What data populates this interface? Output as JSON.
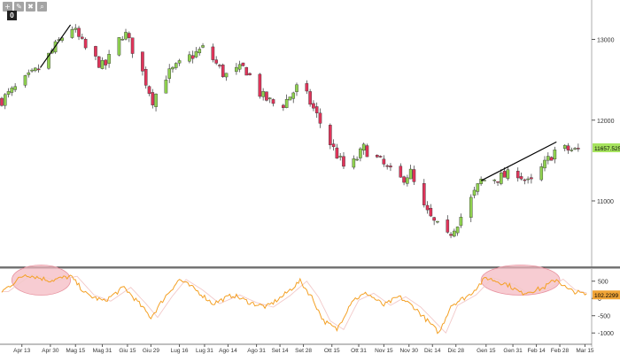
{
  "toolbar": {
    "icons": [
      "plus-icon",
      "pencil-icon",
      "trash-icon",
      "search-icon"
    ],
    "glyphs": [
      "+",
      "✎",
      "✖",
      "⌕"
    ],
    "badge": "0"
  },
  "chart_data": [
    {
      "type": "candlestick",
      "title": "",
      "xlabel": "",
      "ylabel": "",
      "ylim": [
        10200,
        13400
      ],
      "yticks": [
        11000,
        12000,
        13000
      ],
      "ytick_labels": [
        "11000",
        "12000",
        "13000"
      ],
      "last_price": 11657.52,
      "last_price_label": "11657.5250",
      "grid": false,
      "up_color": "#8fd14f",
      "down_color": "#e0345a",
      "trendline_color": "#000000",
      "trendlines": [
        {
          "from": [
            "Apr 24",
            12650
          ],
          "to": [
            "Mag 12",
            13180
          ]
        },
        {
          "from": [
            "Gen 12",
            11250
          ],
          "to": [
            "Feb 26",
            11730
          ]
        }
      ],
      "anchors": [
        [
          "Apr 1",
          12250
        ],
        [
          "Apr 24",
          12650
        ],
        [
          "Mag 12",
          13180
        ],
        [
          "Mag 22",
          12850
        ],
        [
          "Giu 1",
          12650
        ],
        [
          "Giu 13",
          13100
        ],
        [
          "Giu 22",
          12700
        ],
        [
          "Giu 30",
          12250
        ],
        [
          "Lug 8",
          12550
        ],
        [
          "Lug 20",
          12750
        ],
        [
          "Lug 31",
          12900
        ],
        [
          "Ago 12",
          12550
        ],
        [
          "Ago 24",
          12650
        ],
        [
          "Set 3",
          12300
        ],
        [
          "Set 14",
          12150
        ],
        [
          "Set 26",
          12450
        ],
        [
          "Ott 5",
          12100
        ],
        [
          "Ott 13",
          11750
        ],
        [
          "Ott 24",
          11350
        ],
        [
          "Nov 3",
          11650
        ],
        [
          "Nov 12",
          11500
        ],
        [
          "Nov 24",
          11250
        ],
        [
          "Dic 1",
          11350
        ],
        [
          "Dic 6",
          11000
        ],
        [
          "Dic 14",
          10750
        ],
        [
          "Dic 23",
          10550
        ],
        [
          "Gen 3",
          10900
        ],
        [
          "Gen 12",
          11250
        ],
        [
          "Gen 25",
          11300
        ],
        [
          "Feb 3",
          11350
        ],
        [
          "Feb 10",
          11200
        ],
        [
          "Feb 26",
          11650
        ],
        [
          "Mar 10",
          11620
        ],
        [
          "Mar 16",
          11657.52
        ]
      ]
    },
    {
      "type": "line",
      "title": "",
      "ylim": [
        -1250,
        800
      ],
      "yticks": [
        500,
        0,
        -500,
        -1000
      ],
      "ytick_labels": [
        "500",
        "0",
        "-500",
        "-1000"
      ],
      "last_value": 102.2299,
      "last_value_label": "102.2299",
      "series_color": "#f4a024",
      "signal_color": "#f2c9c9",
      "highlight_color": "#f4b6bf",
      "highlights": [
        {
          "from": "Apr 7",
          "to": "Mag 12"
        },
        {
          "from": "Gen 12",
          "to": "Feb 28"
        }
      ],
      "anchors": [
        [
          "Apr 1",
          200
        ],
        [
          "Apr 15",
          700
        ],
        [
          "Apr 30",
          520
        ],
        [
          "Mag 12",
          640
        ],
        [
          "Mag 22",
          100
        ],
        [
          "Giu 1",
          -80
        ],
        [
          "Giu 13",
          320
        ],
        [
          "Giu 22",
          -150
        ],
        [
          "Giu 29",
          -550
        ],
        [
          "Lug 8",
          80
        ],
        [
          "Lug 16",
          550
        ],
        [
          "Lug 26",
          240
        ],
        [
          "Ago 5",
          -150
        ],
        [
          "Ago 17",
          100
        ],
        [
          "Ago 27",
          -120
        ],
        [
          "Set 6",
          -250
        ],
        [
          "Set 16",
          80
        ],
        [
          "Set 26",
          500
        ],
        [
          "Ott 3",
          40
        ],
        [
          "Ott 10",
          -650
        ],
        [
          "Ott 18",
          -900
        ],
        [
          "Ott 27",
          -50
        ],
        [
          "Nov 5",
          150
        ],
        [
          "Nov 15",
          -200
        ],
        [
          "Nov 24",
          50
        ],
        [
          "Dic 3",
          -250
        ],
        [
          "Dic 11",
          -650
        ],
        [
          "Dic 18",
          -1000
        ],
        [
          "Dic 25",
          -200
        ],
        [
          "Gen 5",
          100
        ],
        [
          "Gen 15",
          600
        ],
        [
          "Gen 28",
          400
        ],
        [
          "Feb 5",
          150
        ],
        [
          "Feb 18",
          300
        ],
        [
          "Feb 26",
          560
        ],
        [
          "Mar 5",
          250
        ],
        [
          "Mar 16",
          102.23
        ]
      ]
    }
  ],
  "x_axis": {
    "tick_labels": [
      "Apr 13",
      "Apr 30",
      "Mag 15",
      "Mag 31",
      "Giu 15",
      "Giu 29",
      "Lug 16",
      "Lug 31",
      "Ago 14",
      "Ago 31",
      "Set 14",
      "Set 28",
      "Ott 15",
      "Ott 31",
      "Nov 15",
      "Nov 30",
      "Dic 14",
      "Dic 28",
      "Gen 15",
      "Gen 31",
      "Feb 14",
      "Feb 28",
      "Mar 15"
    ]
  }
}
